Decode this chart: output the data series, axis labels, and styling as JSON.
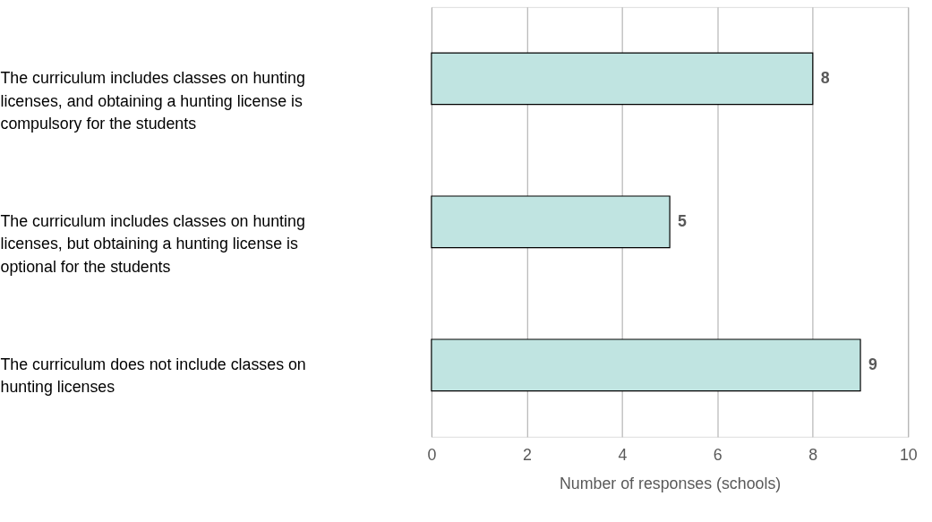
{
  "chart_data": {
    "type": "bar",
    "orientation": "horizontal",
    "categories": [
      "The curriculum includes classes on hunting licenses, and obtaining a hunting license is compulsory for the students",
      "The curriculum includes classes on hunting licenses, but obtaining a hunting license is optional for the students",
      "The curriculum does not include classes on hunting licenses"
    ],
    "values": [
      8,
      5,
      9
    ],
    "color": "#c0e4e1",
    "xlim": [
      0,
      10
    ],
    "xticks": [
      0,
      2,
      4,
      6,
      8,
      10
    ],
    "xlabel": "Number of responses (schools)",
    "grid": "x",
    "data_labels": true
  }
}
